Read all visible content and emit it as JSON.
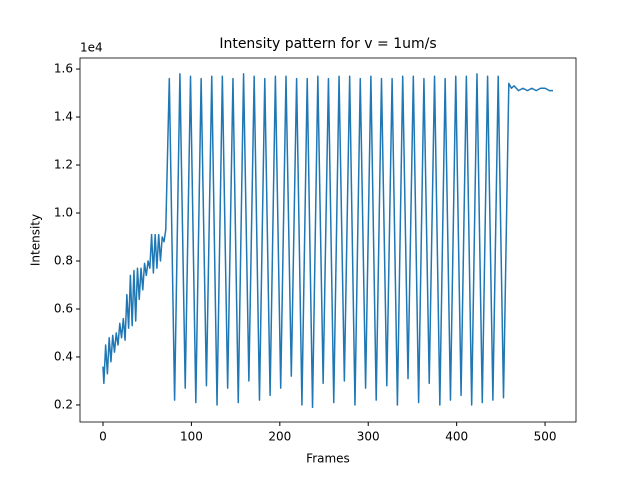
{
  "chart_data": {
    "type": "line",
    "title": "Intensity pattern for v = 1um/s",
    "x_label": "Frames",
    "y_label": "Intensity",
    "y_offset_label": "1e4",
    "xlim": [
      -26,
      535
    ],
    "ylim": [
      0.129,
      1.646
    ],
    "xticks": [
      0,
      100,
      200,
      300,
      400,
      500
    ],
    "yticks": [
      0.2,
      0.4,
      0.6,
      0.8,
      {
        "value": 1,
        "label": "1.0"
      },
      1.2,
      1.4,
      1.6
    ],
    "series": [
      {
        "color": "#1f77b4",
        "x": [
          0,
          1,
          3,
          5,
          7,
          9,
          11,
          13,
          15,
          17,
          19,
          21,
          23,
          25,
          27,
          29,
          31,
          33,
          35,
          37,
          39,
          41,
          43,
          45,
          47,
          49,
          51,
          53,
          55,
          57,
          59,
          61,
          63,
          65,
          67,
          69,
          71,
          75,
          81,
          87,
          93,
          99,
          105,
          111,
          117,
          123,
          129,
          135,
          141,
          147,
          153,
          159,
          165,
          171,
          177,
          183,
          189,
          195,
          201,
          207,
          213,
          219,
          225,
          231,
          237,
          243,
          249,
          255,
          261,
          267,
          273,
          279,
          285,
          291,
          297,
          303,
          309,
          315,
          321,
          327,
          333,
          339,
          345,
          351,
          357,
          363,
          369,
          375,
          381,
          387,
          393,
          399,
          405,
          411,
          417,
          423,
          429,
          435,
          441,
          447,
          453,
          459,
          462,
          465,
          470,
          475,
          480,
          485,
          490,
          495,
          500,
          505,
          509
        ],
        "values": [
          0.36,
          0.29,
          0.45,
          0.33,
          0.48,
          0.38,
          0.49,
          0.42,
          0.5,
          0.45,
          0.54,
          0.48,
          0.56,
          0.47,
          0.66,
          0.52,
          0.74,
          0.53,
          0.76,
          0.55,
          0.77,
          0.64,
          0.77,
          0.68,
          0.79,
          0.74,
          0.8,
          0.77,
          0.91,
          0.75,
          0.91,
          0.77,
          0.91,
          0.8,
          0.9,
          0.88,
          0.93,
          1.56,
          0.22,
          1.58,
          0.27,
          1.57,
          0.21,
          1.56,
          0.28,
          1.57,
          0.2,
          1.57,
          0.27,
          1.56,
          0.21,
          1.58,
          0.3,
          1.57,
          0.22,
          1.56,
          0.24,
          1.57,
          0.27,
          1.57,
          0.32,
          1.56,
          0.2,
          1.56,
          0.19,
          1.57,
          0.29,
          1.56,
          0.21,
          1.57,
          0.3,
          1.57,
          0.2,
          1.56,
          0.27,
          1.57,
          0.22,
          1.56,
          0.28,
          1.56,
          0.2,
          1.57,
          0.31,
          1.57,
          0.21,
          1.56,
          0.29,
          1.57,
          0.2,
          1.56,
          0.22,
          1.57,
          0.24,
          1.57,
          0.2,
          1.58,
          0.21,
          1.57,
          0.22,
          1.57,
          0.23,
          1.54,
          1.52,
          1.53,
          1.51,
          1.52,
          1.51,
          1.52,
          1.51,
          1.52,
          1.52,
          1.51,
          1.51
        ]
      }
    ]
  }
}
